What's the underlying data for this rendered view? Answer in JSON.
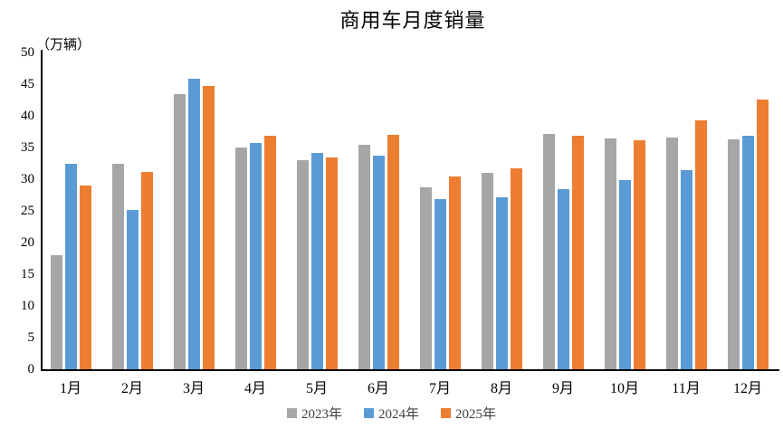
{
  "title": "商用车月度销量",
  "unit_label": "（万辆）",
  "chart_data": {
    "type": "bar",
    "title": "商用车月度销量",
    "ylabel": "（万辆）",
    "categories": [
      "1月",
      "2月",
      "3月",
      "4月",
      "5月",
      "6月",
      "7月",
      "8月",
      "9月",
      "10月",
      "11月",
      "12月"
    ],
    "series": [
      {
        "name": "2023年",
        "color": "#A6A6A6",
        "values": [
          18.0,
          32.4,
          43.5,
          35.0,
          33.0,
          35.5,
          28.7,
          31.0,
          37.2,
          36.5,
          36.6,
          36.3
        ]
      },
      {
        "name": "2024年",
        "color": "#5B9BD5",
        "values": [
          32.5,
          25.2,
          45.9,
          35.7,
          34.2,
          33.7,
          26.8,
          27.2,
          28.4,
          29.8,
          31.5,
          36.9
        ]
      },
      {
        "name": "2025年",
        "color": "#ED7D31",
        "values": [
          29.0,
          31.2,
          44.7,
          36.8,
          33.5,
          37.0,
          30.5,
          31.7,
          36.8,
          36.1,
          39.3,
          42.6
        ]
      }
    ],
    "ylim": [
      0,
      50
    ],
    "ytick_step": 5,
    "grid": false,
    "legend_position": "bottom",
    "axis_color": "#000000",
    "background_color": "#FFFFFF"
  }
}
